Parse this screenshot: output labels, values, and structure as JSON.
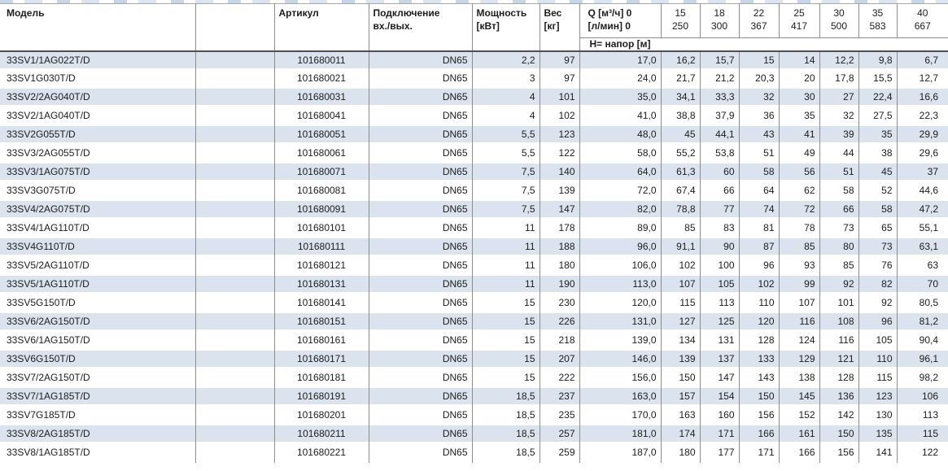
{
  "table": {
    "header": {
      "model": "Модель",
      "article": "Артикул",
      "connection_1": "Подключение",
      "connection_2": "вх./вых.",
      "power_1": "Мощность",
      "power_2": "[кВт]",
      "weight_1": "Вес",
      "weight_2": "[кг]",
      "q_1": "Q [м³/ч] 0",
      "q_2": "[л/мин] 0",
      "head_row2": "H= напор [м]"
    },
    "flow_columns": [
      {
        "m3h": "15",
        "lmin": "250"
      },
      {
        "m3h": "18",
        "lmin": "300"
      },
      {
        "m3h": "22",
        "lmin": "367"
      },
      {
        "m3h": "25",
        "lmin": "417"
      },
      {
        "m3h": "30",
        "lmin": "500"
      },
      {
        "m3h": "35",
        "lmin": "583"
      },
      {
        "m3h": "40",
        "lmin": "667"
      }
    ],
    "rows": [
      {
        "model": "33SV1/1AG022T/D",
        "article": "101680011",
        "connection": "DN65",
        "power": "2,2",
        "weight": "97",
        "heads": [
          "17,0",
          "16,2",
          "15,7",
          "15",
          "14",
          "12,2",
          "9,8",
          "6,7"
        ]
      },
      {
        "model": "33SV1G030T/D",
        "article": "101680021",
        "connection": "DN65",
        "power": "3",
        "weight": "97",
        "heads": [
          "24,0",
          "21,7",
          "21,2",
          "20,3",
          "20",
          "17,8",
          "15,5",
          "12,7"
        ]
      },
      {
        "model": "33SV2/2AG040T/D",
        "article": "101680031",
        "connection": "DN65",
        "power": "4",
        "weight": "101",
        "heads": [
          "35,0",
          "34,1",
          "33,3",
          "32",
          "30",
          "27",
          "22,4",
          "16,6"
        ]
      },
      {
        "model": "33SV2/1AG040T/D",
        "article": "101680041",
        "connection": "DN65",
        "power": "4",
        "weight": "102",
        "heads": [
          "41,0",
          "38,8",
          "37,9",
          "36",
          "35",
          "32",
          "27,5",
          "22,3"
        ]
      },
      {
        "model": "33SV2G055T/D",
        "article": "101680051",
        "connection": "DN65",
        "power": "5,5",
        "weight": "123",
        "heads": [
          "48,0",
          "45",
          "44,1",
          "43",
          "41",
          "39",
          "35",
          "29,9"
        ]
      },
      {
        "model": "33SV3/2AG055T/D",
        "article": "101680061",
        "connection": "DN65",
        "power": "5,5",
        "weight": "122",
        "heads": [
          "58,0",
          "55,2",
          "53,8",
          "51",
          "49",
          "44",
          "38",
          "29,6"
        ]
      },
      {
        "model": "33SV3/1AG075T/D",
        "article": "101680071",
        "connection": "DN65",
        "power": "7,5",
        "weight": "140",
        "heads": [
          "64,0",
          "61,3",
          "60",
          "58",
          "56",
          "51",
          "45",
          "37"
        ]
      },
      {
        "model": "33SV3G075T/D",
        "article": "101680081",
        "connection": "DN65",
        "power": "7,5",
        "weight": "139",
        "heads": [
          "72,0",
          "67,4",
          "66",
          "64",
          "62",
          "58",
          "52",
          "44,6"
        ]
      },
      {
        "model": "33SV4/2AG075T/D",
        "article": "101680091",
        "connection": "DN65",
        "power": "7,5",
        "weight": "147",
        "heads": [
          "82,0",
          "78,8",
          "77",
          "74",
          "72",
          "66",
          "58",
          "47,2"
        ]
      },
      {
        "model": "33SV4/1AG110T/D",
        "article": "101680101",
        "connection": "DN65",
        "power": "11",
        "weight": "178",
        "heads": [
          "89,0",
          "85",
          "83",
          "81",
          "78",
          "73",
          "65",
          "55,1"
        ]
      },
      {
        "model": "33SV4G110T/D",
        "article": "101680111",
        "connection": "DN65",
        "power": "11",
        "weight": "188",
        "heads": [
          "96,0",
          "91,1",
          "90",
          "87",
          "85",
          "80",
          "73",
          "63,1"
        ]
      },
      {
        "model": "33SV5/2AG110T/D",
        "article": "101680121",
        "connection": "DN65",
        "power": "11",
        "weight": "180",
        "heads": [
          "106,0",
          "102",
          "100",
          "96",
          "93",
          "85",
          "76",
          "63"
        ]
      },
      {
        "model": "33SV5/1AG110T/D",
        "article": "101680131",
        "connection": "DN65",
        "power": "11",
        "weight": "190",
        "heads": [
          "113,0",
          "107",
          "105",
          "102",
          "99",
          "92",
          "82",
          "70"
        ]
      },
      {
        "model": "33SV5G150T/D",
        "article": "101680141",
        "connection": "DN65",
        "power": "15",
        "weight": "230",
        "heads": [
          "120,0",
          "115",
          "113",
          "110",
          "107",
          "101",
          "92",
          "80,5"
        ]
      },
      {
        "model": "33SV6/2AG150T/D",
        "article": "101680151",
        "connection": "DN65",
        "power": "15",
        "weight": "226",
        "heads": [
          "131,0",
          "127",
          "125",
          "120",
          "116",
          "108",
          "96",
          "81,2"
        ]
      },
      {
        "model": "33SV6/1AG150T/D",
        "article": "101680161",
        "connection": "DN65",
        "power": "15",
        "weight": "218",
        "heads": [
          "139,0",
          "134",
          "131",
          "128",
          "124",
          "116",
          "105",
          "90,4"
        ]
      },
      {
        "model": "33SV6G150T/D",
        "article": "101680171",
        "connection": "DN65",
        "power": "15",
        "weight": "207",
        "heads": [
          "146,0",
          "139",
          "137",
          "133",
          "129",
          "121",
          "110",
          "96,1"
        ]
      },
      {
        "model": "33SV7/2AG150T/D",
        "article": "101680181",
        "connection": "DN65",
        "power": "15",
        "weight": "222",
        "heads": [
          "156,0",
          "150",
          "147",
          "143",
          "138",
          "128",
          "115",
          "98,2"
        ]
      },
      {
        "model": "33SV7/1AG185T/D",
        "article": "101680191",
        "connection": "DN65",
        "power": "18,5",
        "weight": "237",
        "heads": [
          "163,0",
          "157",
          "154",
          "150",
          "145",
          "136",
          "123",
          "106"
        ]
      },
      {
        "model": "33SV7G185T/D",
        "article": "101680201",
        "connection": "DN65",
        "power": "18,5",
        "weight": "235",
        "heads": [
          "170,0",
          "163",
          "160",
          "156",
          "152",
          "142",
          "130",
          "113"
        ]
      },
      {
        "model": "33SV8/2AG185T/D",
        "article": "101680211",
        "connection": "DN65",
        "power": "18,5",
        "weight": "257",
        "heads": [
          "181,0",
          "174",
          "171",
          "166",
          "161",
          "150",
          "135",
          "115"
        ]
      },
      {
        "model": "33SV8/1AG185T/D",
        "article": "101680221",
        "connection": "DN65",
        "power": "18,5",
        "weight": "259",
        "heads": [
          "187,0",
          "180",
          "177",
          "171",
          "166",
          "156",
          "141",
          "122"
        ]
      }
    ]
  }
}
